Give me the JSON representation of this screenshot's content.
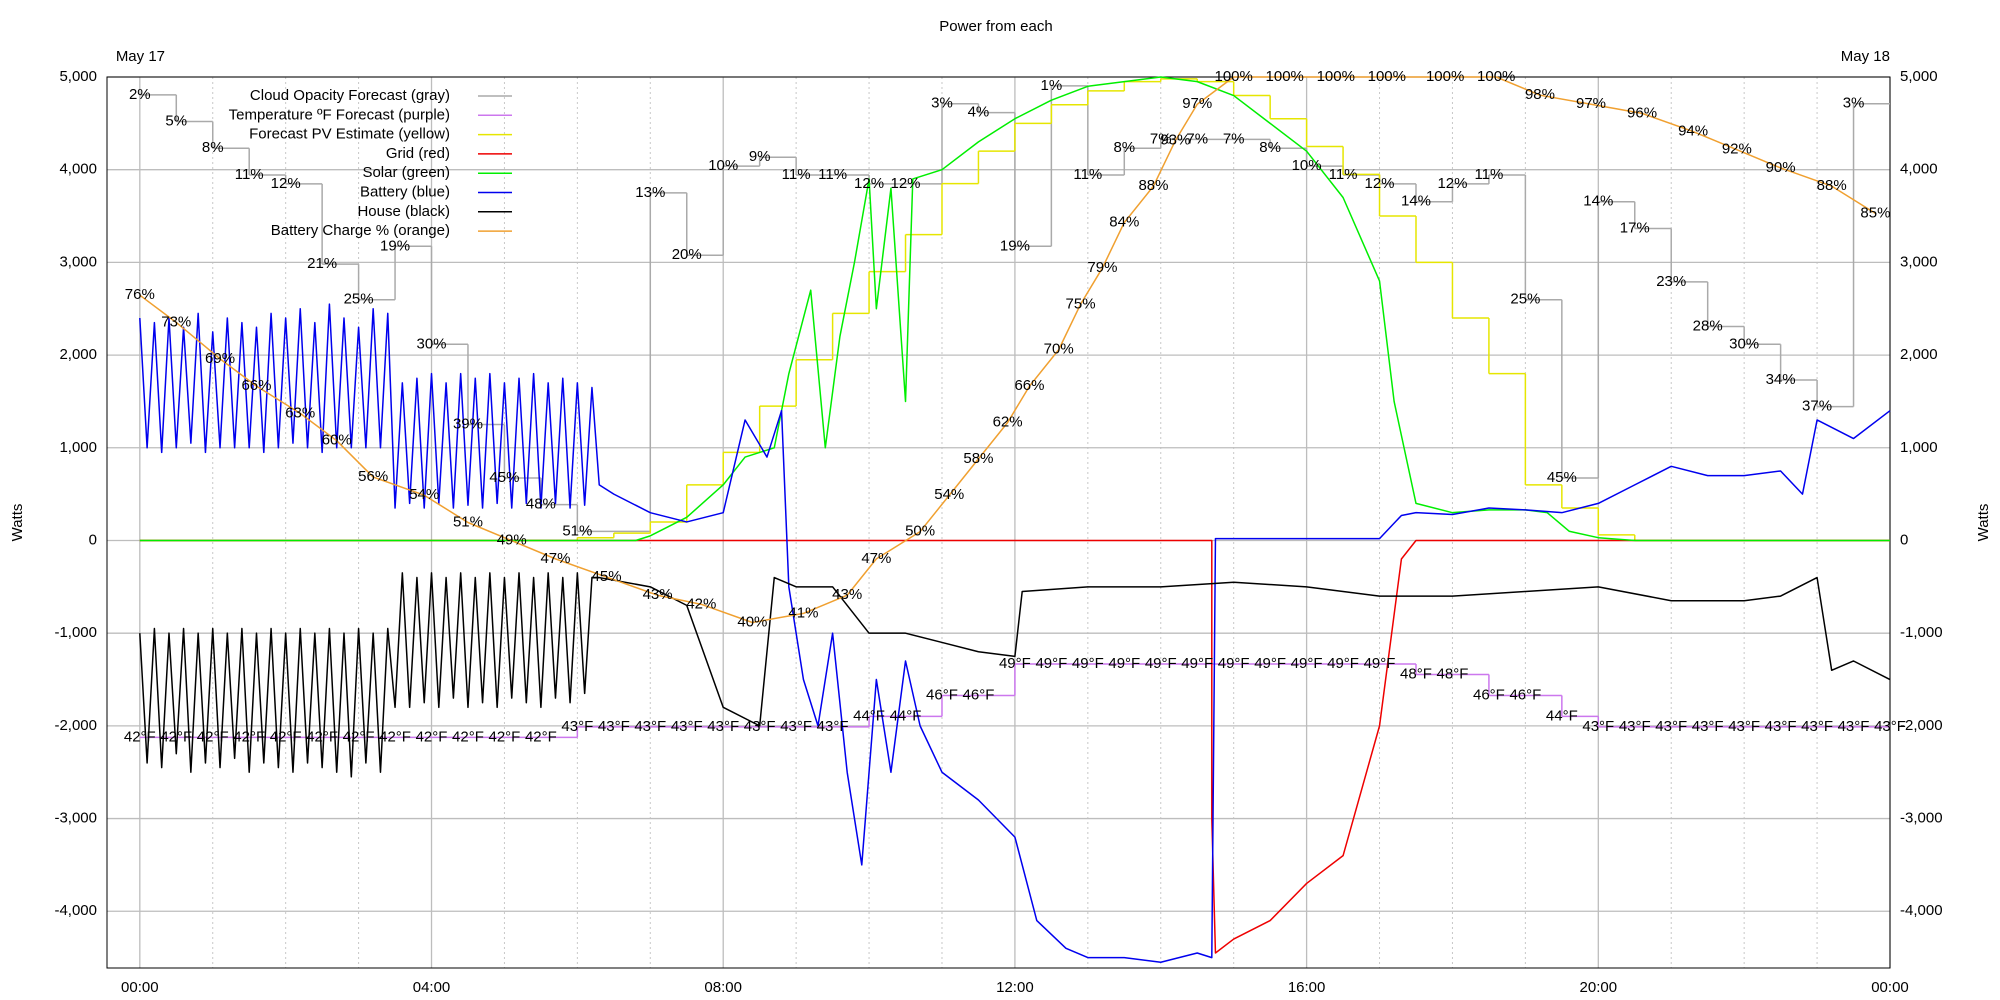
{
  "chart_data": {
    "type": "line",
    "title": "Power from each",
    "x_start_label": "May 17",
    "x_end_label": "May 18",
    "ylabel": "Watts",
    "xlim": [
      -0.45,
      24
    ],
    "xticks": [
      {
        "value": 0,
        "label": "00:00"
      },
      {
        "value": 4,
        "label": "04:00"
      },
      {
        "value": 8,
        "label": "08:00"
      },
      {
        "value": 12,
        "label": "12:00"
      },
      {
        "value": 16,
        "label": "16:00"
      },
      {
        "value": 20,
        "label": "20:00"
      },
      {
        "value": 24,
        "label": "00:00"
      }
    ],
    "xminorticks": [
      1,
      2,
      3,
      5,
      6,
      7,
      9,
      10,
      11,
      13,
      14,
      15,
      17,
      18,
      19,
      21,
      22,
      23
    ],
    "ylim": [
      -4612,
      5000
    ],
    "yticks": [
      {
        "value": 5000,
        "label": "5,000"
      },
      {
        "value": 4000,
        "label": "4,000"
      },
      {
        "value": 3000,
        "label": "3,000"
      },
      {
        "value": 2000,
        "label": "2,000"
      },
      {
        "value": 1000,
        "label": "1,000"
      },
      0,
      {
        "value": -1000,
        "label": "-1,000"
      },
      {
        "value": -2000,
        "label": "-2,000"
      },
      {
        "value": -3000,
        "label": "-3,000"
      },
      {
        "value": -4000,
        "label": "-4,000"
      }
    ],
    "grid": true,
    "legend": "top-left",
    "series": [
      {
        "name": "Cloud Opacity Forecast (gray)",
        "color": "#aaaaaa",
        "label_color": "#aaaaaa",
        "step": true,
        "ylim": [
          100,
          0
        ],
        "x": [
          0,
          0.5,
          1,
          1.5,
          2,
          2.5,
          3,
          3.5,
          4,
          4.5,
          5,
          5.5,
          6,
          7,
          7.5,
          8,
          8.5,
          9,
          9.5,
          10,
          10.5,
          11,
          11.5,
          12,
          12.5,
          13,
          13.5,
          14,
          14.5,
          15,
          15.5,
          16,
          16.5,
          17,
          17.5,
          18,
          18.5,
          19,
          19.5,
          20,
          20.5,
          21,
          21.5,
          22,
          22.5,
          23,
          23.5
        ],
        "values": [
          2,
          5,
          8,
          11,
          12,
          21,
          25,
          19,
          30,
          39,
          45,
          48,
          51,
          13,
          20,
          10,
          9,
          11,
          11,
          12,
          12,
          3,
          4,
          19,
          1,
          11,
          8,
          7,
          7,
          7,
          8,
          10,
          11,
          12,
          14,
          12,
          11,
          25,
          45,
          14,
          17,
          23,
          28,
          30,
          34,
          37,
          3
        ],
        "value_labels": [
          "2%",
          "5%",
          "8%",
          "11%",
          "12%",
          "21%",
          "25%",
          "19%",
          "30%",
          "39%",
          "45%",
          "48%",
          "51%",
          "13%",
          "20%",
          "10%",
          "9%",
          "11%",
          "11%",
          "12%",
          "12%",
          "3%",
          "4%",
          "19%",
          "1%",
          "11%",
          "8%",
          "7%",
          "7%",
          "7%",
          "8%",
          "10%",
          "11%",
          "12%",
          "14%",
          "12%",
          "11%",
          "25%",
          "45%",
          "14%",
          "17%",
          "23%",
          "28%",
          "30%",
          "34%",
          "37%",
          "3%"
        ]
      },
      {
        "name": "Temperature ºF Forecast (purple)",
        "color": "#cc77ee",
        "label_color": "#bb66dd",
        "step": true,
        "ylim": [
          20,
          105
        ],
        "x": [
          0,
          0.5,
          1,
          1.5,
          2,
          2.5,
          3,
          3.5,
          4,
          4.5,
          5,
          5.5,
          6,
          6.5,
          7,
          7.5,
          8,
          8.5,
          9,
          9.5,
          10,
          10.5,
          11,
          11.5,
          12,
          12.5,
          13,
          13.5,
          14,
          14.5,
          15,
          15.5,
          16,
          16.5,
          17,
          17.5,
          18,
          18.5,
          19,
          19.5,
          20,
          20.5,
          21,
          21.5,
          22,
          22.5,
          23,
          23.5,
          24
        ],
        "values": [
          42,
          42,
          42,
          42,
          42,
          42,
          42,
          42,
          42,
          42,
          42,
          42,
          43,
          43,
          43,
          43,
          43,
          43,
          43,
          43,
          44,
          44,
          46,
          46,
          49,
          49,
          49,
          49,
          49,
          49,
          49,
          49,
          49,
          49,
          49,
          48,
          48,
          46,
          46,
          44,
          43,
          43,
          43,
          43,
          43,
          43,
          43,
          43,
          43
        ],
        "value_labels": [
          "42°F",
          "42°F",
          "42°F",
          "42°F",
          "42°F",
          "42°F",
          "42°F",
          "42°F",
          "42°F",
          "42°F",
          "42°F",
          "42°F",
          "43°F",
          "43°F",
          "43°F",
          "43°F",
          "43°F",
          "43°F",
          "43°F",
          "43°F",
          "44°F",
          "44°F",
          "46°F",
          "46°F",
          "49°F",
          "49°F",
          "49°F",
          "49°F",
          "49°F",
          "49°F",
          "49°F",
          "49°F",
          "49°F",
          "49°F",
          "49°F",
          "48°F",
          "48°F",
          "46°F",
          "46°F",
          "44°F",
          "43°F",
          "43°F",
          "43°F",
          "43°F",
          "43°F",
          "43°F",
          "43°F",
          "43°F",
          "43°F"
        ]
      },
      {
        "name": "Forecast PV Estimate (yellow)",
        "color": "#e6e600",
        "step": true,
        "x": [
          0,
          6,
          6.5,
          7,
          7.5,
          8,
          8.5,
          9,
          9.5,
          10,
          10.5,
          11,
          11.5,
          12,
          12.5,
          13,
          13.5,
          14,
          14.5,
          15,
          15.5,
          16,
          16.5,
          17,
          17.5,
          18,
          18.5,
          19,
          19.5,
          20,
          20.5
        ],
        "values": [
          0,
          30,
          80,
          200,
          600,
          950,
          1450,
          1950,
          2450,
          2900,
          3300,
          3850,
          4200,
          4500,
          4700,
          4850,
          4950,
          4980,
          4950,
          4800,
          4550,
          4250,
          3950,
          3500,
          3000,
          2400,
          1800,
          600,
          350,
          60,
          0
        ]
      },
      {
        "name": "Grid (red)",
        "color": "#ee0000",
        "x": [
          0,
          14.7,
          14.7,
          14.75,
          15,
          15.5,
          16,
          16.5,
          17,
          17.3,
          17.5,
          24
        ],
        "values": [
          0,
          0,
          -3000,
          -4450,
          -4300,
          -4100,
          -3700,
          -3400,
          -2000,
          -200,
          0,
          0
        ]
      },
      {
        "name": "Solar (green)",
        "color": "#00ee00",
        "x": [
          0,
          6.8,
          7,
          7.5,
          8,
          8.3,
          8.7,
          8.9,
          9.2,
          9.4,
          9.6,
          9.8,
          10,
          10.1,
          10.3,
          10.5,
          10.6,
          11,
          11.5,
          12,
          12.5,
          13,
          13.5,
          14,
          14.5,
          15,
          15.5,
          16,
          16.5,
          17,
          17.2,
          17.5,
          18,
          18.5,
          19,
          19.3,
          19.6,
          20,
          20.5,
          24
        ],
        "values": [
          0,
          0,
          50,
          250,
          600,
          900,
          1000,
          1800,
          2700,
          1000,
          2200,
          3000,
          3900,
          2500,
          3800,
          1500,
          3900,
          4000,
          4300,
          4550,
          4750,
          4900,
          4950,
          5000,
          4950,
          4800,
          4500,
          4200,
          3700,
          2800,
          1500,
          400,
          300,
          330,
          330,
          300,
          100,
          30,
          0,
          0
        ]
      },
      {
        "name": "Battery (blue)",
        "color": "#0000ee",
        "x": [
          0,
          0.1,
          0.2,
          0.3,
          0.4,
          0.5,
          0.6,
          0.7,
          0.8,
          0.9,
          1,
          1.1,
          1.2,
          1.3,
          1.4,
          1.5,
          1.6,
          1.7,
          1.8,
          1.9,
          2,
          2.1,
          2.2,
          2.3,
          2.4,
          2.5,
          2.6,
          2.7,
          2.8,
          2.9,
          3,
          3.1,
          3.2,
          3.3,
          3.4,
          3.5,
          3.6,
          3.7,
          3.8,
          3.9,
          4,
          4.1,
          4.2,
          4.3,
          4.4,
          4.5,
          4.6,
          4.7,
          4.8,
          4.9,
          5,
          5.1,
          5.2,
          5.3,
          5.4,
          5.5,
          5.6,
          5.7,
          5.8,
          5.9,
          6,
          6.1,
          6.2,
          6.3,
          6.5,
          7,
          7.5,
          8,
          8.3,
          8.6,
          8.8,
          8.9,
          9.1,
          9.3,
          9.5,
          9.7,
          9.9,
          10.1,
          10.3,
          10.5,
          10.7,
          11,
          11.5,
          12,
          12.3,
          12.7,
          13,
          13.5,
          14,
          14.5,
          14.7,
          14.75,
          15,
          16,
          17,
          17.3,
          17.5,
          18,
          18.5,
          19,
          19.5,
          20,
          20.5,
          21,
          21.5,
          22,
          22.5,
          22.8,
          23,
          23.5,
          24
        ],
        "values": [
          2400,
          1000,
          2350,
          950,
          2400,
          1000,
          2300,
          1050,
          2450,
          950,
          2250,
          1000,
          2400,
          1000,
          2350,
          1000,
          2300,
          950,
          2450,
          1000,
          2400,
          1050,
          2500,
          1000,
          2350,
          950,
          2550,
          1000,
          2400,
          1000,
          2300,
          1000,
          2500,
          1000,
          2450,
          350,
          1700,
          400,
          1750,
          350,
          1800,
          400,
          1700,
          350,
          1800,
          380,
          1750,
          350,
          1800,
          400,
          1700,
          350,
          1750,
          400,
          1800,
          350,
          1700,
          400,
          1750,
          350,
          1700,
          380,
          1650,
          600,
          500,
          300,
          200,
          300,
          1300,
          900,
          1400,
          -500,
          -1500,
          -2000,
          -1000,
          -2500,
          -3500,
          -1500,
          -2500,
          -1300,
          -2000,
          -2500,
          -2800,
          -3200,
          -4100,
          -4400,
          -4500,
          -4500,
          -4550,
          -4450,
          -4500,
          20,
          20,
          20,
          20,
          270,
          300,
          280,
          350,
          330,
          300,
          400,
          600,
          800,
          700,
          700,
          750,
          500,
          1300,
          1100,
          1400
        ]
      },
      {
        "name": "House (black)",
        "color": "#000000",
        "x": [
          0,
          0.1,
          0.2,
          0.3,
          0.4,
          0.5,
          0.6,
          0.7,
          0.8,
          0.9,
          1,
          1.1,
          1.2,
          1.3,
          1.4,
          1.5,
          1.6,
          1.7,
          1.8,
          1.9,
          2,
          2.1,
          2.2,
          2.3,
          2.4,
          2.5,
          2.6,
          2.7,
          2.8,
          2.9,
          3,
          3.1,
          3.2,
          3.3,
          3.4,
          3.5,
          3.6,
          3.7,
          3.8,
          3.9,
          4,
          4.1,
          4.2,
          4.3,
          4.4,
          4.5,
          4.6,
          4.7,
          4.8,
          4.9,
          5,
          5.1,
          5.2,
          5.3,
          5.4,
          5.5,
          5.6,
          5.7,
          5.8,
          5.9,
          6,
          6.1,
          6.2,
          6.3,
          7,
          7.5,
          8,
          8.5,
          8.7,
          9,
          9.5,
          10,
          10.5,
          11,
          11.5,
          12,
          12.1,
          13,
          14,
          15,
          16,
          17,
          18,
          19,
          20,
          21,
          22,
          22.5,
          23,
          23.2,
          23.5,
          24
        ],
        "values": [
          -1000,
          -2400,
          -950,
          -2450,
          -1000,
          -2300,
          -950,
          -2500,
          -1000,
          -2400,
          -950,
          -2450,
          -1000,
          -2350,
          -950,
          -2500,
          -1000,
          -2400,
          -950,
          -2450,
          -1000,
          -2500,
          -950,
          -2400,
          -1000,
          -2450,
          -950,
          -2500,
          -1000,
          -2550,
          -950,
          -2400,
          -1000,
          -2500,
          -950,
          -1800,
          -350,
          -1800,
          -400,
          -1750,
          -350,
          -1800,
          -400,
          -1700,
          -350,
          -1800,
          -400,
          -1750,
          -350,
          -1800,
          -400,
          -1700,
          -350,
          -1750,
          -400,
          -1800,
          -350,
          -1700,
          -400,
          -1750,
          -350,
          -1650,
          -400,
          -400,
          -500,
          -700,
          -1800,
          -2000,
          -400,
          -500,
          -500,
          -1000,
          -1000,
          -1100,
          -1200,
          -1250,
          -550,
          -500,
          -500,
          -450,
          -500,
          -600,
          -600,
          -550,
          -500,
          -650,
          -650,
          -600,
          -400,
          -1400,
          -1300,
          -1500
        ]
      },
      {
        "name": "Battery Charge % (orange)",
        "color": "#f0a030",
        "label_color": "#7a3d00",
        "ylim": [
          2,
          100
        ],
        "x": [
          0,
          0.5,
          1.1,
          1.6,
          2.2,
          2.7,
          3.2,
          3.9,
          4.5,
          5.1,
          5.7,
          6.4,
          7.1,
          7.7,
          8.4,
          9.1,
          9.7,
          10.1,
          10.7,
          11.1,
          11.5,
          11.9,
          12.2,
          12.6,
          12.9,
          13.2,
          13.5,
          13.9,
          14.2,
          14.5,
          15,
          15.7,
          16.4,
          17.1,
          17.9,
          18.6,
          19.2,
          19.9,
          20.6,
          21.3,
          21.9,
          22.5,
          23.2,
          23.8
        ],
        "values": [
          76,
          73,
          69,
          66,
          63,
          60,
          56,
          54,
          51,
          49,
          47,
          45,
          43,
          42,
          40,
          41,
          43,
          47,
          50,
          54,
          58,
          62,
          66,
          70,
          75,
          79,
          84,
          88,
          93,
          97,
          100,
          100,
          100,
          100,
          100,
          100,
          98,
          97,
          96,
          94,
          92,
          90,
          88,
          85
        ],
        "value_labels": [
          "76%",
          "73%",
          "69%",
          "66%",
          "63%",
          "60%",
          "56%",
          "54%",
          "51%",
          "49%",
          "47%",
          "45%",
          "43%",
          "42%",
          "40%",
          "41%",
          "43%",
          "47%",
          "50%",
          "54%",
          "58%",
          "62%",
          "66%",
          "70%",
          "75%",
          "79%",
          "84%",
          "88%",
          "93%",
          "97%",
          "100%",
          "100%",
          "100%",
          "100%",
          "100%",
          "100%",
          "98%",
          "97%",
          "96%",
          "94%",
          "92%",
          "90%",
          "88%",
          "85%"
        ]
      }
    ]
  }
}
